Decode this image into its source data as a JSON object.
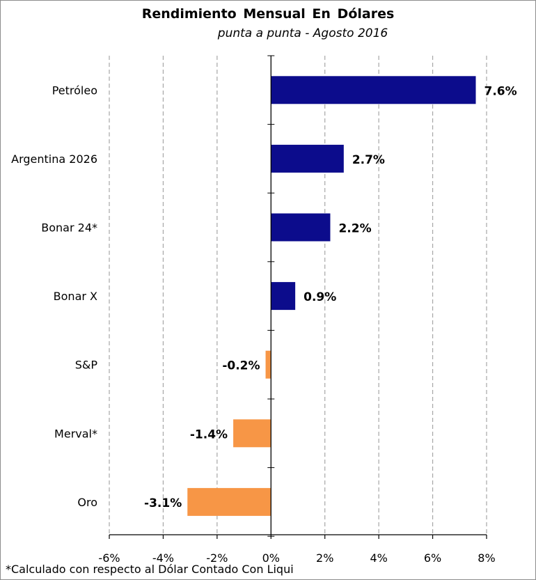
{
  "title": "Rendimiento  Mensual  En  Dólares",
  "subtitle": "punta a punta - Agosto 2016",
  "footnote": "*Calculado con respecto al Dólar Contado Con Liqui",
  "chart_data": {
    "type": "bar",
    "orientation": "horizontal",
    "categories": [
      "Petróleo",
      "Argentina 2026",
      "Bonar 24*",
      "Bonar X",
      "S&P",
      "Merval*",
      "Oro"
    ],
    "values": [
      7.6,
      2.7,
      2.2,
      0.9,
      -0.2,
      -1.4,
      -3.1
    ],
    "data_labels": [
      "7.6%",
      "2.7%",
      "2.2%",
      "0.9%",
      "-0.2%",
      "-1.4%",
      "-3.1%"
    ],
    "xlim": [
      -6,
      8
    ],
    "x_ticks": [
      -6,
      -4,
      -2,
      0,
      2,
      4,
      6,
      8
    ],
    "x_tick_labels": [
      "-6%",
      "-4%",
      "-2%",
      "0%",
      "2%",
      "4%",
      "6%",
      "8%"
    ],
    "grid": "vertical dashed",
    "colors": {
      "positive": "#0c0c8c",
      "negative": "#f79646",
      "grid": "#a6a6a6"
    }
  }
}
